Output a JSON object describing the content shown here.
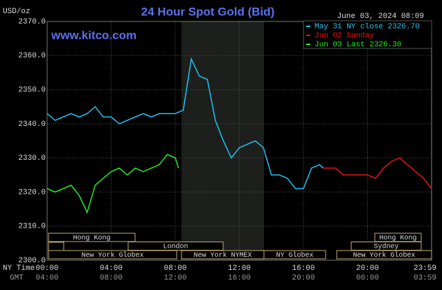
{
  "chart_data": {
    "type": "line",
    "title": "24 Hour Spot Gold (Bid)",
    "unit_label": "USD/oz",
    "timestamp": "June 03, 2024 08:09",
    "website": "www.kitco.com",
    "x_row_label": "NY Time",
    "gmt_row_label": "GMT",
    "xlim": [
      0,
      24
    ],
    "xticks": [
      {
        "value": 0,
        "label": "00:00"
      },
      {
        "value": 4,
        "label": "04:00"
      },
      {
        "value": 8,
        "label": "08:00"
      },
      {
        "value": 12,
        "label": "12:00"
      },
      {
        "value": 16,
        "label": "16:00"
      },
      {
        "value": 20,
        "label": "20:00"
      },
      {
        "value": 23.98,
        "label": "23:59"
      }
    ],
    "gmt_labels": [
      "04:00",
      "08:00",
      "12:00",
      "16:00",
      "20:00",
      "00:00",
      "03:59"
    ],
    "ylim": [
      2300,
      2370
    ],
    "yticks": [
      {
        "value": 2300,
        "label": "2300.0"
      },
      {
        "value": 2310,
        "label": "2310.0"
      },
      {
        "value": 2320,
        "label": "2320.0"
      },
      {
        "value": 2330,
        "label": "2330.0"
      },
      {
        "value": 2340,
        "label": "2340.0"
      },
      {
        "value": 2350,
        "label": "2350.0"
      },
      {
        "value": 2360,
        "label": "2360.0"
      },
      {
        "value": 2370,
        "label": "2370.0"
      }
    ],
    "grid": true,
    "series": [
      {
        "name": "May 31 NY close 2326.70",
        "color": "#22c4f4",
        "x": [
          0,
          0.5,
          1,
          1.5,
          2,
          2.5,
          3,
          3.5,
          4,
          4.5,
          5,
          5.5,
          6,
          6.5,
          7,
          7.5,
          8,
          8.5,
          9,
          9.5,
          10,
          10.5,
          11,
          11.5,
          12,
          12.5,
          13,
          13.5,
          14,
          14.5,
          15,
          15.5,
          16,
          16.5,
          17,
          17.25
        ],
        "values": [
          2343,
          2341,
          2342,
          2343,
          2342,
          2343,
          2345,
          2342,
          2342,
          2340,
          2341,
          2342,
          2343,
          2342,
          2343,
          2343,
          2343,
          2344,
          2359,
          2354,
          2353,
          2341,
          2335,
          2330,
          2333,
          2334,
          2335,
          2333,
          2325,
          2325,
          2324,
          2321,
          2321,
          2327,
          2328,
          2327
        ]
      },
      {
        "name": "Jun 02 Sunday",
        "color": "#ee1111",
        "x": [
          17.25,
          18,
          18.5,
          19,
          19.5,
          20,
          20.5,
          21,
          21.5,
          22,
          22.5,
          23,
          23.5,
          24
        ],
        "values": [
          2327,
          2327,
          2325,
          2325,
          2325,
          2325,
          2324,
          2327,
          2329,
          2330,
          2328,
          2326,
          2324,
          2321
        ]
      },
      {
        "name": "Jun 03 Last 2326.30",
        "color": "#22ee22",
        "x": [
          0,
          0.5,
          1,
          1.5,
          2,
          2.5,
          3,
          3.5,
          4,
          4.5,
          5,
          5.5,
          6,
          6.5,
          7,
          7.5,
          8,
          8.2
        ],
        "values": [
          2321,
          2320,
          2321,
          2322,
          2319,
          2314,
          2322,
          2324,
          2326,
          2327,
          2325,
          2327,
          2326,
          2327,
          2328,
          2331,
          2330,
          2327
        ]
      }
    ],
    "sessions": [
      "Hong Kong",
      "Hong Kong",
      "London",
      "Sydney",
      "New York Globex",
      "New York NYMEX",
      "NY Globex",
      "New York Globex"
    ]
  }
}
